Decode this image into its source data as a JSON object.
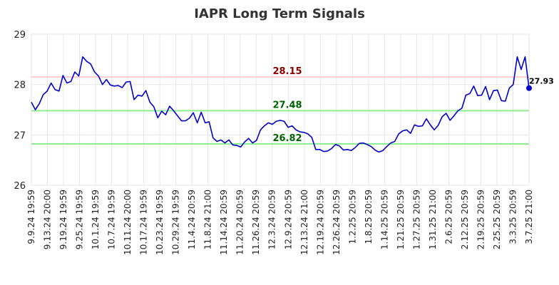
{
  "chart_data": {
    "type": "line",
    "title": "IAPR Long Term Signals",
    "xlabel": "",
    "ylabel": "",
    "ylim": [
      26,
      29
    ],
    "yticks": [
      "26",
      "27",
      "28",
      "29"
    ],
    "grid": true,
    "x_tick_labels": [
      "9.9.24 19:59",
      "9.13.24 20:00",
      "9.19.24 19:59",
      "9.25.24 19:59",
      "10.1.24 19:59",
      "10.7.24 19:59",
      "10.11.24 20:00",
      "10.17.24 19:59",
      "10.23.24 19:59",
      "10.29.24 19:59",
      "11.4.24 20:59",
      "11.8.24 21:00",
      "11.14.24 20:59",
      "11.20.24 20:59",
      "11.26.24 20:59",
      "12.3.24 20:59",
      "12.9.24 20:59",
      "12.13.24 21:00",
      "12.19.24 20:59",
      "12.26.24 20:59",
      "1.2.25 20:59",
      "1.8.25 20:59",
      "1.14.25 20:59",
      "1.21.25 20:59",
      "1.27.25 20:59",
      "1.31.25 21:00",
      "2.6.25 20:59",
      "2.12.25 20:59",
      "2.19.25 20:59",
      "2.25.25 20:59",
      "3.3.25 20:59",
      "3.7.25 21:00"
    ],
    "series": [
      {
        "color": "#0000cc",
        "values": [
          27.65,
          27.5,
          27.62,
          27.8,
          27.87,
          28.03,
          27.9,
          27.87,
          28.18,
          28.03,
          28.06,
          28.25,
          28.17,
          28.55,
          28.46,
          28.41,
          28.25,
          28.17,
          28.0,
          28.1,
          27.99,
          27.97,
          27.98,
          27.94,
          28.05,
          28.06,
          27.7,
          27.79,
          27.77,
          27.88,
          27.65,
          27.56,
          27.34,
          27.47,
          27.4,
          27.57,
          27.48,
          27.38,
          27.28,
          27.28,
          27.33,
          27.44,
          27.24,
          27.45,
          27.24,
          27.26,
          26.94,
          26.87,
          26.9,
          26.84,
          26.9,
          26.8,
          26.79,
          26.76,
          26.86,
          26.93,
          26.84,
          26.89,
          27.1,
          27.18,
          27.24,
          27.21,
          27.27,
          27.29,
          27.27,
          27.15,
          27.18,
          27.1,
          27.06,
          27.05,
          27.02,
          26.95,
          26.71,
          26.71,
          26.67,
          26.68,
          26.73,
          26.81,
          26.78,
          26.7,
          26.71,
          26.69,
          26.75,
          26.83,
          26.84,
          26.81,
          26.77,
          26.7,
          26.66,
          26.69,
          26.77,
          26.84,
          26.87,
          27.02,
          27.08,
          27.1,
          27.03,
          27.2,
          27.17,
          27.18,
          27.32,
          27.2,
          27.1,
          27.19,
          27.36,
          27.43,
          27.29,
          27.38,
          27.48,
          27.53,
          27.79,
          27.82,
          27.97,
          27.78,
          27.79,
          27.96,
          27.7,
          27.88,
          27.89,
          27.68,
          27.67,
          27.93,
          28.0,
          28.55,
          28.3,
          28.55,
          27.93
        ]
      }
    ],
    "reference_lines": [
      {
        "value": 28.15,
        "label": "28.15",
        "line_color": "#ffcccc",
        "label_color": "#8b0000"
      },
      {
        "value": 27.48,
        "label": "27.48",
        "line_color": "#90ee90",
        "label_color": "#006400"
      },
      {
        "value": 26.82,
        "label": "26.82",
        "line_color": "#90ee90",
        "label_color": "#006400"
      }
    ],
    "last_value_label": "27.93"
  }
}
